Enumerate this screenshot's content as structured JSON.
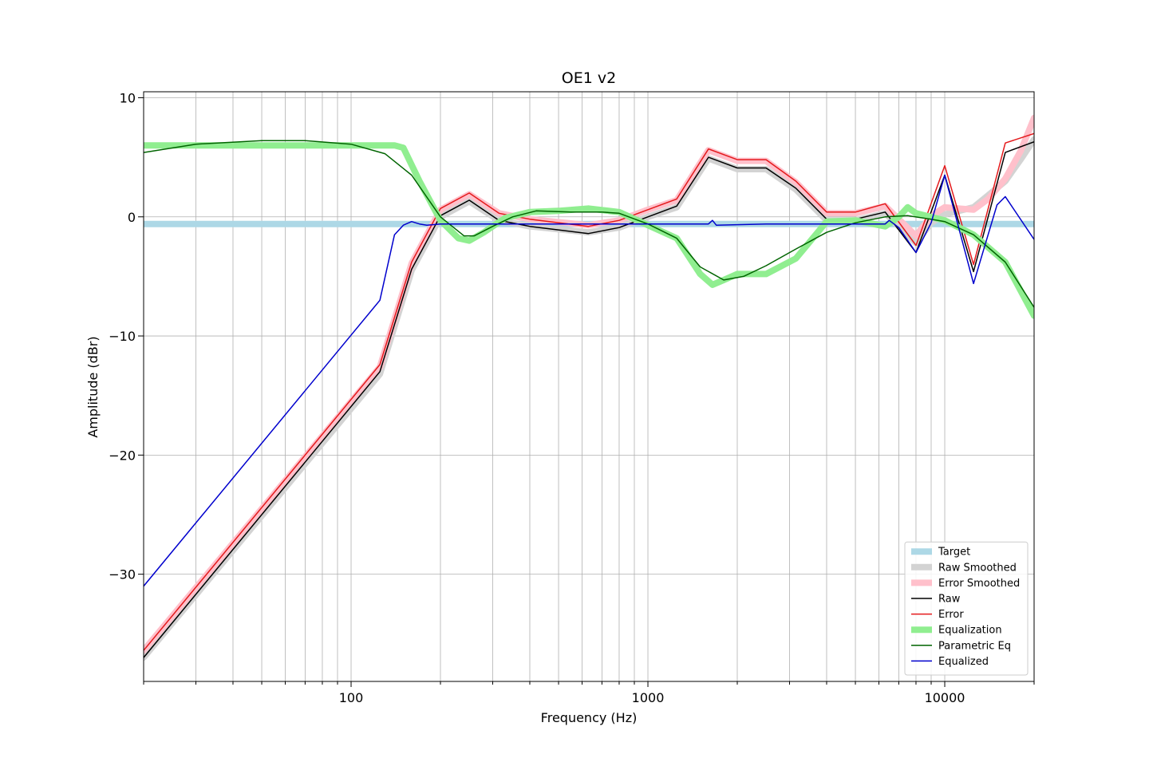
{
  "chart_data": {
    "type": "line",
    "title": "OE1 v2",
    "xlabel": "Frequency (Hz)",
    "ylabel": "Amplitude (dBr)",
    "x_scale": "log",
    "xlim": [
      20,
      20000
    ],
    "ylim": [
      -39,
      10.5
    ],
    "grid": true,
    "legend_position": "bottom-right",
    "x_ticks": [
      {
        "value": 100,
        "label": "100"
      },
      {
        "value": 1000,
        "label": "1000"
      },
      {
        "value": 10000,
        "label": "10000"
      }
    ],
    "y_ticks": [
      {
        "value": 10,
        "label": "10"
      },
      {
        "value": 0,
        "label": "0"
      },
      {
        "value": -10,
        "label": "−10"
      },
      {
        "value": -20,
        "label": "−20"
      },
      {
        "value": -30,
        "label": "−30"
      }
    ],
    "series": [
      {
        "name": "Target",
        "color": "#add8e6",
        "style": "thick",
        "points": [
          [
            20,
            -0.6
          ],
          [
            20000,
            -0.6
          ]
        ]
      },
      {
        "name": "Raw Smoothed",
        "color": "#d3d3d3",
        "style": "thick",
        "points": [
          [
            20,
            -37
          ],
          [
            125,
            -13.2
          ],
          [
            160,
            -4.5
          ],
          [
            200,
            0
          ],
          [
            250,
            1.3
          ],
          [
            315,
            -0.3
          ],
          [
            400,
            -0.8
          ],
          [
            630,
            -1.3
          ],
          [
            800,
            -0.9
          ],
          [
            1000,
            0
          ],
          [
            1250,
            0.8
          ],
          [
            1600,
            4.9
          ],
          [
            2000,
            4
          ],
          [
            2500,
            4
          ],
          [
            3150,
            2.3
          ],
          [
            4000,
            -0.3
          ],
          [
            5000,
            -0.3
          ],
          [
            6300,
            0.3
          ],
          [
            8000,
            -2.2
          ],
          [
            9000,
            -0.5
          ],
          [
            10000,
            0.2
          ],
          [
            12500,
            0.8
          ],
          [
            14000,
            1.8
          ],
          [
            16000,
            3
          ],
          [
            18000,
            4.8
          ],
          [
            20000,
            6.5
          ]
        ]
      },
      {
        "name": "Error Smoothed",
        "color": "#ffc0cb",
        "style": "thick",
        "points": [
          [
            20,
            -36.4
          ],
          [
            125,
            -12.6
          ],
          [
            160,
            -3.9
          ],
          [
            200,
            0.6
          ],
          [
            250,
            1.9
          ],
          [
            315,
            0.3
          ],
          [
            400,
            -0.2
          ],
          [
            630,
            -0.7
          ],
          [
            800,
            -0.3
          ],
          [
            1000,
            0.6
          ],
          [
            1250,
            1.4
          ],
          [
            1600,
            5.6
          ],
          [
            2000,
            4.7
          ],
          [
            2500,
            4.7
          ],
          [
            3150,
            2.9
          ],
          [
            4000,
            0.3
          ],
          [
            5000,
            0.3
          ],
          [
            6300,
            0.9
          ],
          [
            8000,
            -1.6
          ],
          [
            9000,
            0.1
          ],
          [
            10000,
            0.8
          ],
          [
            12500,
            0.6
          ],
          [
            14000,
            1.5
          ],
          [
            16000,
            3.2
          ],
          [
            18000,
            5.5
          ],
          [
            20000,
            8.3
          ]
        ]
      },
      {
        "name": "Raw",
        "color": "#000000",
        "style": "thin",
        "points": [
          [
            20,
            -37
          ],
          [
            125,
            -13
          ],
          [
            160,
            -4.4
          ],
          [
            200,
            0.1
          ],
          [
            250,
            1.4
          ],
          [
            315,
            -0.3
          ],
          [
            400,
            -0.8
          ],
          [
            630,
            -1.4
          ],
          [
            800,
            -0.9
          ],
          [
            1000,
            0
          ],
          [
            1250,
            0.9
          ],
          [
            1600,
            5
          ],
          [
            2000,
            4.1
          ],
          [
            2500,
            4.1
          ],
          [
            3150,
            2.4
          ],
          [
            4000,
            -0.2
          ],
          [
            5000,
            -0.2
          ],
          [
            6300,
            0.4
          ],
          [
            8000,
            -3
          ],
          [
            10000,
            3.5
          ],
          [
            12500,
            -4.6
          ],
          [
            16000,
            5.4
          ],
          [
            20000,
            6.3
          ]
        ]
      },
      {
        "name": "Error",
        "color": "#e41a1c",
        "style": "thin",
        "points": [
          [
            20,
            -36.4
          ],
          [
            125,
            -12.4
          ],
          [
            160,
            -3.8
          ],
          [
            200,
            0.7
          ],
          [
            250,
            2
          ],
          [
            315,
            0.3
          ],
          [
            400,
            -0.2
          ],
          [
            630,
            -0.8
          ],
          [
            800,
            -0.3
          ],
          [
            1000,
            0.6
          ],
          [
            1250,
            1.5
          ],
          [
            1600,
            5.7
          ],
          [
            2000,
            4.8
          ],
          [
            2500,
            4.8
          ],
          [
            3150,
            3
          ],
          [
            4000,
            0.4
          ],
          [
            5000,
            0.4
          ],
          [
            6300,
            1.1
          ],
          [
            8000,
            -2.4
          ],
          [
            10000,
            4.3
          ],
          [
            12500,
            -4
          ],
          [
            16000,
            6.2
          ],
          [
            20000,
            7
          ]
        ]
      },
      {
        "name": "Equalization",
        "color": "#90ee90",
        "style": "thick",
        "points": [
          [
            20,
            6
          ],
          [
            140,
            6
          ],
          [
            150,
            5.8
          ],
          [
            170,
            3
          ],
          [
            200,
            -0.3
          ],
          [
            230,
            -1.8
          ],
          [
            250,
            -2
          ],
          [
            280,
            -1.3
          ],
          [
            330,
            -0.1
          ],
          [
            400,
            0.4
          ],
          [
            500,
            0.5
          ],
          [
            630,
            0.7
          ],
          [
            800,
            0.4
          ],
          [
            1000,
            -0.7
          ],
          [
            1250,
            -1.8
          ],
          [
            1500,
            -4.8
          ],
          [
            1650,
            -5.7
          ],
          [
            1800,
            -5.3
          ],
          [
            2000,
            -4.8
          ],
          [
            2500,
            -4.8
          ],
          [
            3150,
            -3.5
          ],
          [
            4000,
            -0.4
          ],
          [
            5000,
            -0.3
          ],
          [
            6300,
            -0.8
          ],
          [
            7000,
            0
          ],
          [
            7500,
            0.8
          ],
          [
            8000,
            0.3
          ],
          [
            10000,
            -0.3
          ],
          [
            12500,
            -1.5
          ],
          [
            16000,
            -3.8
          ],
          [
            20000,
            -8.3
          ]
        ]
      },
      {
        "name": "Parametric Eq",
        "color": "#006400",
        "style": "thin",
        "points": [
          [
            20,
            5.4
          ],
          [
            30,
            6.1
          ],
          [
            50,
            6.4
          ],
          [
            70,
            6.4
          ],
          [
            100,
            6.1
          ],
          [
            130,
            5.3
          ],
          [
            160,
            3.5
          ],
          [
            200,
            0
          ],
          [
            240,
            -1.6
          ],
          [
            260,
            -1.6
          ],
          [
            300,
            -0.8
          ],
          [
            350,
            0
          ],
          [
            420,
            0.5
          ],
          [
            550,
            0.4
          ],
          [
            700,
            0.4
          ],
          [
            800,
            0.3
          ],
          [
            1000,
            -0.6
          ],
          [
            1250,
            -1.8
          ],
          [
            1500,
            -4.2
          ],
          [
            1800,
            -5.3
          ],
          [
            2100,
            -5
          ],
          [
            2500,
            -4.1
          ],
          [
            3150,
            -2.7
          ],
          [
            4000,
            -1.3
          ],
          [
            5000,
            -0.5
          ],
          [
            6300,
            0
          ],
          [
            7500,
            0.1
          ],
          [
            9000,
            -0.2
          ],
          [
            10000,
            -0.4
          ],
          [
            12500,
            -1.5
          ],
          [
            16000,
            -3.8
          ],
          [
            20000,
            -7.6
          ]
        ]
      },
      {
        "name": "Equalized",
        "color": "#0000cd",
        "style": "thin",
        "points": [
          [
            20,
            -31
          ],
          [
            125,
            -7
          ],
          [
            140,
            -1.5
          ],
          [
            150,
            -0.7
          ],
          [
            160,
            -0.4
          ],
          [
            170,
            -0.6
          ],
          [
            180,
            -0.7
          ],
          [
            200,
            -0.6
          ],
          [
            300,
            -0.6
          ],
          [
            500,
            -0.6
          ],
          [
            1000,
            -0.6
          ],
          [
            1600,
            -0.6
          ],
          [
            1650,
            -0.3
          ],
          [
            1700,
            -0.7
          ],
          [
            2500,
            -0.6
          ],
          [
            4000,
            -0.6
          ],
          [
            6300,
            -0.6
          ],
          [
            6500,
            -0.3
          ],
          [
            7000,
            -0.9
          ],
          [
            8000,
            -3
          ],
          [
            9000,
            -0.5
          ],
          [
            10000,
            3.5
          ],
          [
            12500,
            -5.6
          ],
          [
            15000,
            1
          ],
          [
            16000,
            1.7
          ],
          [
            20000,
            -1.9
          ]
        ]
      }
    ]
  }
}
